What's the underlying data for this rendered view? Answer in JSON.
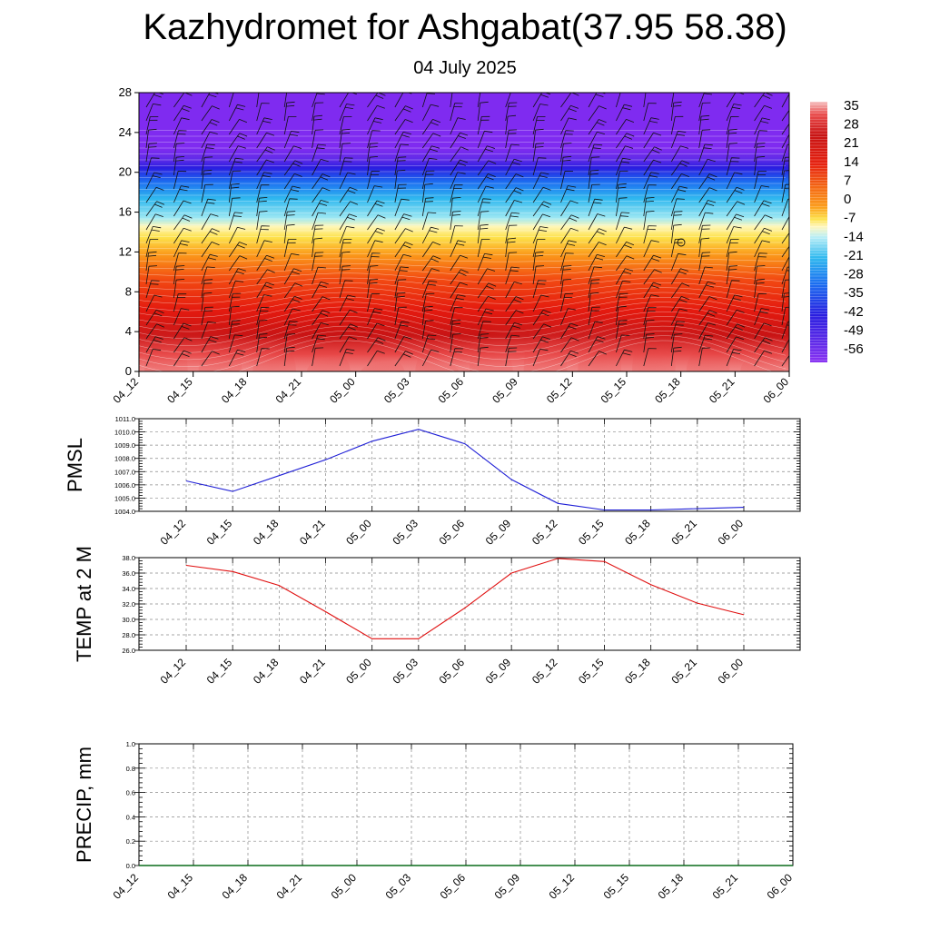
{
  "title": "Kazhydromet for Ashgabat(37.95 58.38)",
  "subtitle": "04 July 2025",
  "time_labels": [
    "04_12",
    "04_15",
    "04_18",
    "04_21",
    "05_00",
    "05_03",
    "05_06",
    "05_09",
    "05_12",
    "05_15",
    "05_18",
    "05_21",
    "06_00"
  ],
  "colorbar": {
    "labels": [
      "35",
      "28",
      "21",
      "14",
      "7",
      "0",
      "-7",
      "-14",
      "-21",
      "-28",
      "-35",
      "-42",
      "-49",
      "-56"
    ],
    "min": -60,
    "max": 38
  },
  "chart_data": [
    {
      "type": "heatmap",
      "title": "",
      "ylim": [
        0,
        28
      ],
      "yticks": [
        "0",
        "4",
        "8",
        "12",
        "16",
        "20",
        "24",
        "28"
      ],
      "x": [
        "04_12",
        "04_15",
        "04_18",
        "04_21",
        "05_00",
        "05_03",
        "05_06",
        "05_09",
        "05_12",
        "05_15",
        "05_18",
        "05_21",
        "06_00"
      ],
      "surface_temperature": [
        36,
        34,
        31,
        29,
        27,
        26,
        30,
        35,
        37,
        36,
        34,
        30,
        28
      ],
      "note_field": "temperature (colour) with wind barbs"
    },
    {
      "type": "line",
      "ylabel": "PMSL",
      "ylim": [
        1004.0,
        1011.0
      ],
      "yticks": [
        "1004.0",
        "1005.0",
        "1006.0",
        "1007.0",
        "1008.0",
        "1009.0",
        "1010.0",
        "1011.0"
      ],
      "x": [
        "04_12",
        "04_15",
        "04_18",
        "04_21",
        "05_00",
        "05_03",
        "05_06",
        "05_09",
        "05_12",
        "05_15",
        "05_18",
        "05_21",
        "06_00"
      ],
      "values": [
        1006.3,
        1005.5,
        1006.7,
        1007.9,
        1009.3,
        1010.2,
        1009.1,
        1006.4,
        1004.6,
        1004.1,
        1004.1,
        1004.2,
        1004.3
      ],
      "color": "#1f1fd6"
    },
    {
      "type": "line",
      "ylabel": "TEMP at 2 M",
      "ylim": [
        26.0,
        38.0
      ],
      "yticks": [
        "26.0",
        "28.0",
        "30.0",
        "32.0",
        "34.0",
        "36.0",
        "38.0"
      ],
      "x": [
        "04_12",
        "04_15",
        "04_18",
        "04_21",
        "05_00",
        "05_03",
        "05_06",
        "05_09",
        "05_12",
        "05_15",
        "05_18",
        "05_21",
        "06_00"
      ],
      "values": [
        37.0,
        36.2,
        34.4,
        31.0,
        27.5,
        27.5,
        31.5,
        36.0,
        37.9,
        37.5,
        34.5,
        32.1,
        30.6
      ],
      "color": "#e01010"
    },
    {
      "type": "line",
      "ylabel": "PRECIP, mm",
      "ylim": [
        0.0,
        1.0
      ],
      "yticks": [
        "0.0",
        "0.2",
        "0.4",
        "0.6",
        "0.8",
        "1.0"
      ],
      "x": [
        "04_12",
        "04_15",
        "04_18",
        "04_21",
        "05_00",
        "05_03",
        "05_06",
        "05_09",
        "05_12",
        "05_15",
        "05_18",
        "05_21",
        "06_00"
      ],
      "values": [
        0,
        0,
        0,
        0,
        0,
        0,
        0,
        0,
        0,
        0,
        0,
        0,
        0
      ],
      "color": "#0a6b1a"
    }
  ]
}
